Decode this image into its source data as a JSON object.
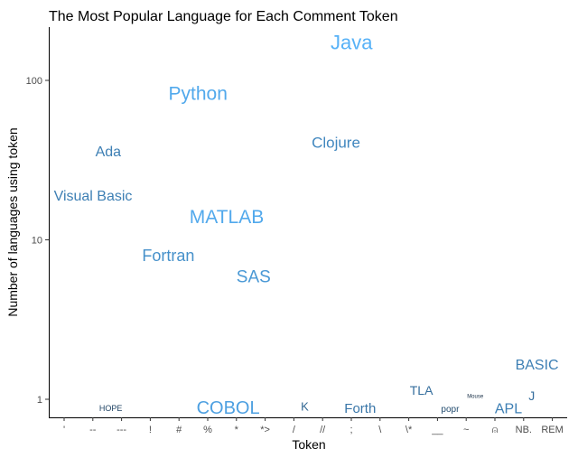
{
  "chart_data": {
    "type": "scatter",
    "subtype": "text-labels",
    "title": "The Most Popular Language for Each Comment Token",
    "xlabel": "Token",
    "ylabel": "Number of languages using token",
    "y_scale": "log10",
    "ylim": [
      0.8,
      220
    ],
    "y_ticks": [
      1,
      10,
      100
    ],
    "y_tick_labels": [
      "1",
      "10",
      "100"
    ],
    "grid": false,
    "legend": "none",
    "categories": [
      "'",
      "--",
      "---",
      "!",
      "#",
      "%",
      "*",
      "*>",
      "/",
      "//",
      ";",
      "\\",
      "\\*",
      "__",
      "~",
      "⍝",
      "NB.",
      "REM"
    ],
    "color_low": "#132B43",
    "color_high": "#56B1F7",
    "points": [
      {
        "token": "'",
        "label": "Visual Basic",
        "y": 19,
        "size": 14
      },
      {
        "token": "--",
        "label": "Ada",
        "y": 36,
        "size": 14
      },
      {
        "token": "---",
        "label": "HOPE",
        "y": 0.88,
        "size": 7
      },
      {
        "token": "!",
        "label": "Fortran",
        "y": 8,
        "size": 16
      },
      {
        "token": "#",
        "label": "Python",
        "y": 83,
        "size": 19
      },
      {
        "token": "%",
        "label": "MATLAB",
        "y": 14,
        "size": 19
      },
      {
        "token": "*",
        "label": "SAS",
        "y": 5.9,
        "size": 17
      },
      {
        "token": "*>",
        "label": "COBOL",
        "y": 0.89,
        "size": 18
      },
      {
        "token": "/",
        "label": "K",
        "y": 0.9,
        "size": 11
      },
      {
        "token": "//",
        "label": "Java",
        "y": 173,
        "size": 20
      },
      {
        "token": ";",
        "label": "Clojure",
        "y": 41,
        "size": 15
      },
      {
        "token": "\\",
        "label": "Forth",
        "y": 0.88,
        "size": 13
      },
      {
        "token": "\\*",
        "label": "TLA",
        "y": 1.14,
        "size": 12
      },
      {
        "token": "__",
        "label": "popr",
        "y": 0.87,
        "size": 8
      },
      {
        "token": "~",
        "label": "Mouse",
        "y": 1.05,
        "size": 4
      },
      {
        "token": "⍝",
        "label": "APL",
        "y": 0.88,
        "size": 14
      },
      {
        "token": "NB.",
        "label": "J",
        "y": 1.05,
        "size": 12
      },
      {
        "token": "REM",
        "label": "BASIC",
        "y": 1.66,
        "size": 14
      }
    ]
  }
}
